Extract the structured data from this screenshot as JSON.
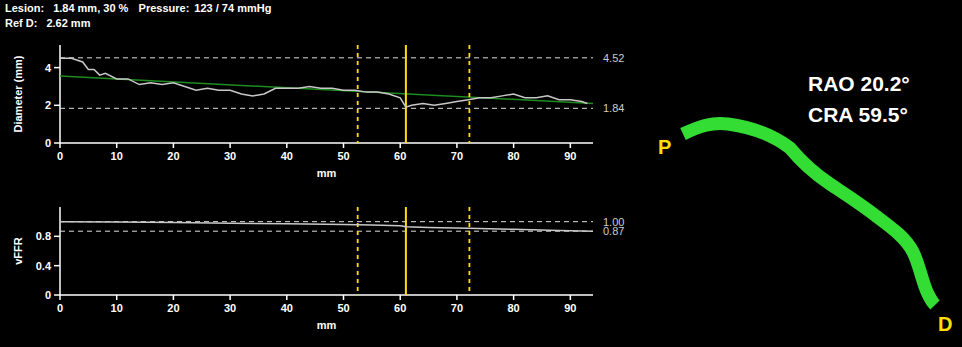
{
  "header": {
    "lesion_label": "Lesion:",
    "lesion_value": "1.84 mm, 30 %",
    "pressure_label": "Pressure:",
    "pressure_value": "123 / 74 mmHg",
    "ref_label": "Ref D:",
    "ref_value": "2.62 mm"
  },
  "chart_data": [
    {
      "type": "line",
      "y_label": "Diameter (mm)",
      "x_label": "mm",
      "xlim": [
        0,
        94
      ],
      "xticks": [
        0,
        10,
        20,
        30,
        40,
        50,
        60,
        70,
        80,
        90
      ],
      "ylim": [
        0,
        5.2
      ],
      "yticks": [
        0,
        2,
        4
      ],
      "x": [
        0,
        2,
        4,
        5,
        6,
        7,
        8,
        10,
        12,
        14,
        16,
        18,
        20,
        22,
        24,
        26,
        28,
        30,
        32,
        34,
        36,
        38,
        40,
        42,
        44,
        46,
        48,
        50,
        52,
        54,
        56,
        58,
        60,
        61,
        62,
        64,
        66,
        68,
        70,
        72,
        74,
        76,
        78,
        80,
        82,
        84,
        86,
        88,
        90,
        92,
        93
      ],
      "values": [
        4.5,
        4.5,
        4.3,
        3.9,
        3.9,
        3.6,
        3.7,
        3.4,
        3.4,
        3.1,
        3.2,
        3.1,
        3.2,
        3.0,
        2.8,
        2.9,
        2.8,
        2.8,
        2.6,
        2.5,
        2.6,
        2.9,
        2.9,
        2.9,
        3.0,
        2.9,
        2.9,
        2.8,
        2.8,
        2.7,
        2.7,
        2.6,
        2.4,
        1.9,
        2.0,
        2.1,
        2.0,
        2.1,
        2.2,
        2.3,
        2.4,
        2.4,
        2.5,
        2.6,
        2.4,
        2.4,
        2.5,
        2.3,
        2.3,
        2.2,
        2.1
      ],
      "color": "#c8c8c8",
      "reference": {
        "x": [
          0,
          94
        ],
        "values": [
          3.55,
          2.1
        ],
        "color": "#1e8c1e"
      },
      "ref_lines": [
        4.52,
        1.84
      ],
      "markers": [
        {
          "x": 52.5,
          "line_style": "dashed",
          "color": "#ffe000"
        },
        {
          "x": 61,
          "line_style": "solid",
          "color": "#ffe000"
        },
        {
          "x": 72.2,
          "line_style": "dashed",
          "color": "#ffe000"
        }
      ]
    },
    {
      "type": "line",
      "y_label": "vFFR",
      "x_label": "mm",
      "xlim": [
        0,
        94
      ],
      "xticks": [
        0,
        10,
        20,
        30,
        40,
        50,
        60,
        70,
        80,
        90
      ],
      "ylim": [
        0,
        1.2
      ],
      "yticks": [
        0,
        0.4,
        0.8
      ],
      "x": [
        0,
        10,
        20,
        30,
        40,
        50,
        55,
        60,
        61,
        65,
        72,
        80,
        88,
        94
      ],
      "values": [
        1.0,
        0.995,
        0.99,
        0.98,
        0.97,
        0.96,
        0.955,
        0.945,
        0.93,
        0.92,
        0.91,
        0.895,
        0.88,
        0.87
      ],
      "color": "#c8c8c8",
      "ref_lines": [
        {
          "value": 1,
          "label": "1.00"
        },
        0.87
      ],
      "markers": [
        {
          "x": 52.5,
          "line_style": "dashed",
          "color": "#ffe000"
        },
        {
          "x": 61,
          "line_style": "solid",
          "color": "#ffe000"
        },
        {
          "x": 72.2,
          "line_style": "dashed",
          "color": "#ffe000"
        }
      ]
    }
  ],
  "view": {
    "angle_1": "RAO 20.2°",
    "angle_2": "CRA 59.5°",
    "proximal": "P",
    "distal": "D",
    "color": "#33dd33"
  }
}
